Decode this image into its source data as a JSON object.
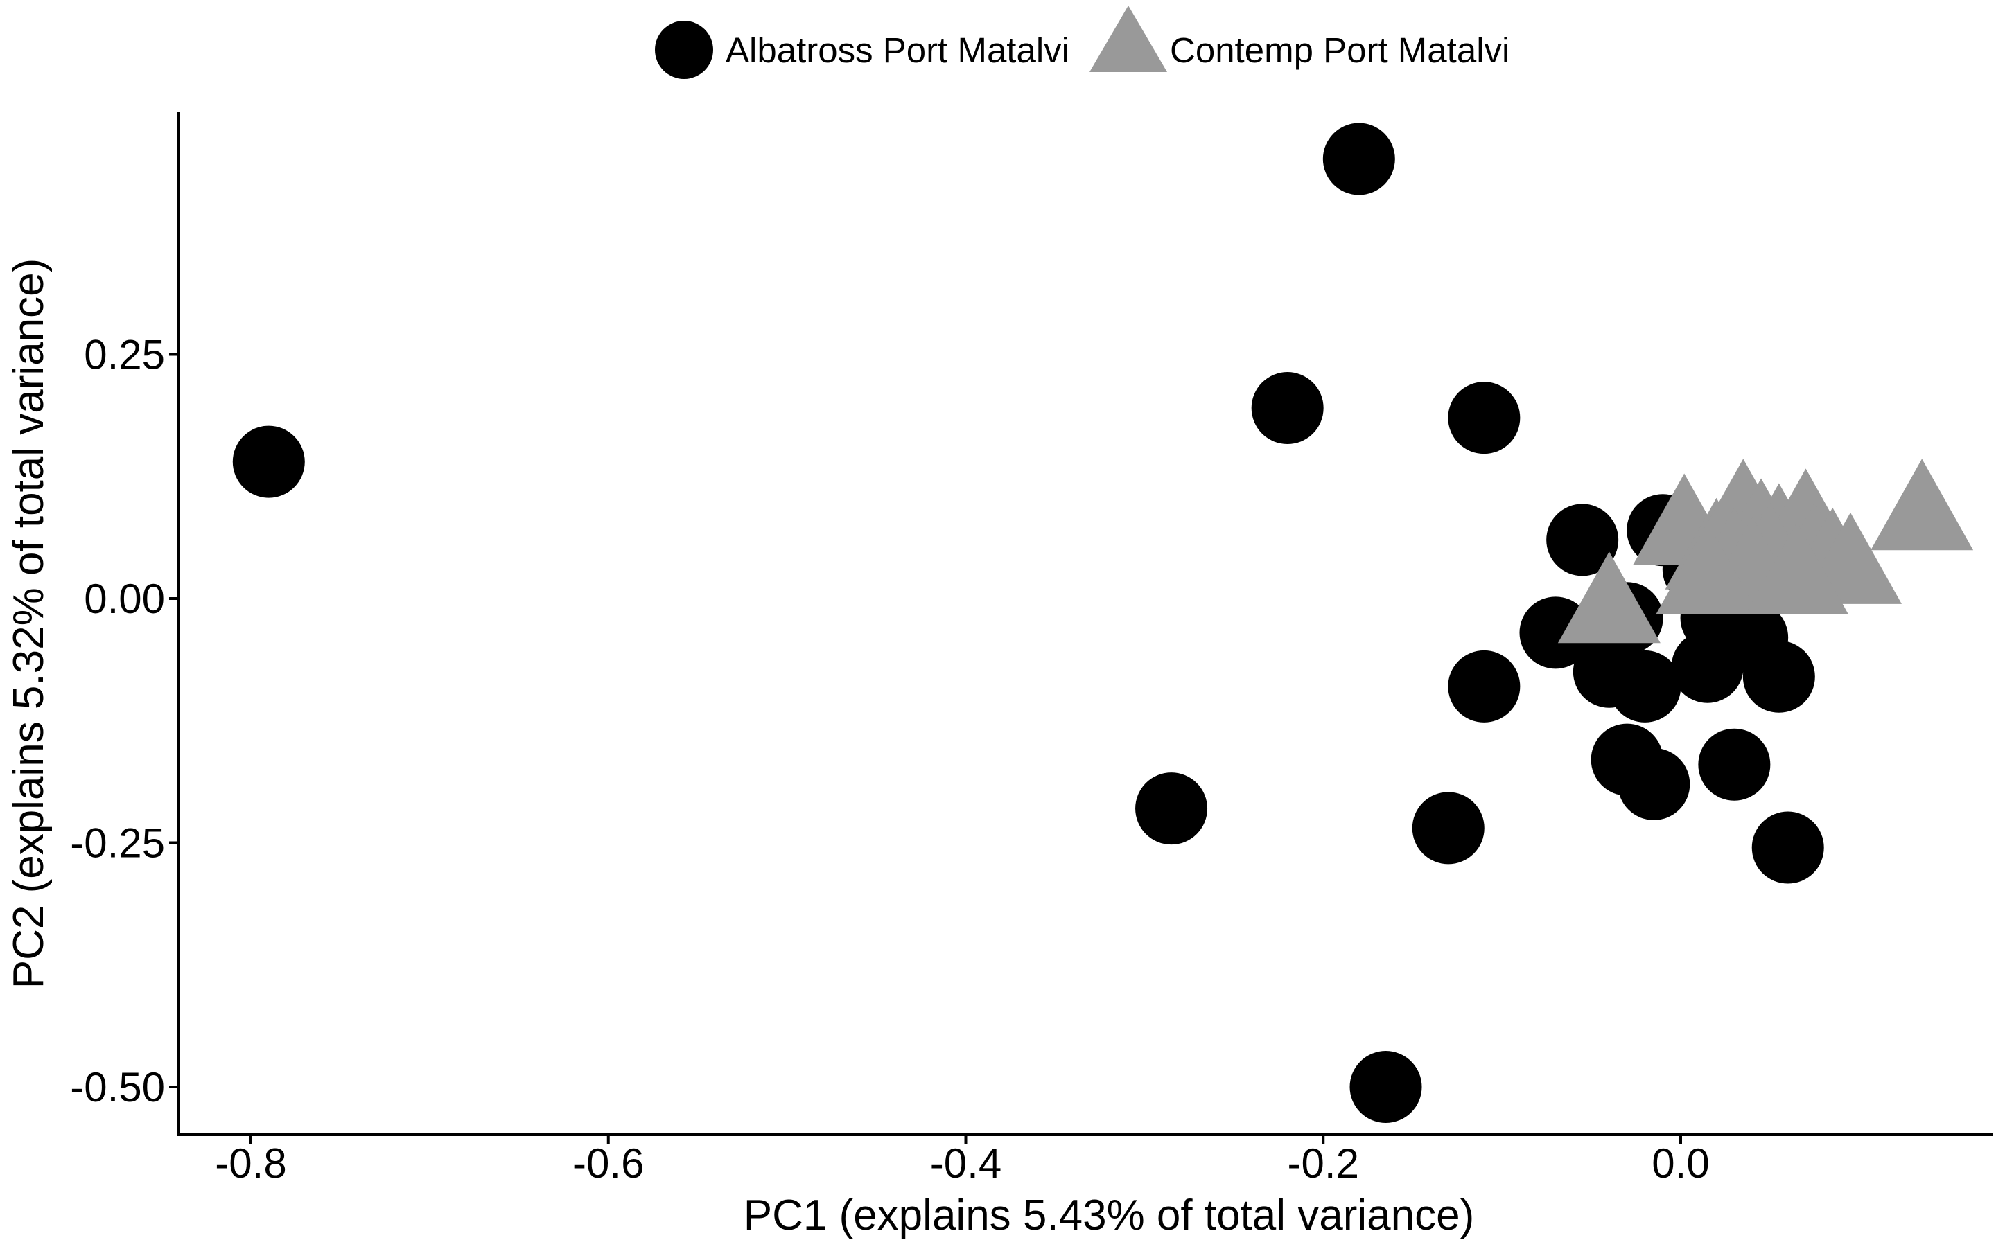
{
  "chart_data": {
    "type": "scatter",
    "title": "",
    "xlabel": "PC1 (explains 5.43% of total variance)",
    "ylabel": "PC2 (explains 5.32% of total variance)",
    "xlim": [
      -0.835,
      0.385
    ],
    "ylim": [
      -0.545,
      0.5
    ],
    "x_ticks": [
      -0.8,
      -0.6,
      -0.4,
      -0.2,
      0.0
    ],
    "x_tick_labels": [
      "-0.8",
      "-0.6",
      "-0.4",
      "-0.2",
      "0.0"
    ],
    "y_ticks": [
      -0.5,
      -0.25,
      0.0,
      0.25
    ],
    "y_tick_labels": [
      "-0.50",
      "-0.25",
      "0.00",
      "0.25"
    ],
    "grid": false,
    "legend_position": "top",
    "series": [
      {
        "name": "Albatross Port Matalvi",
        "marker": "circle",
        "color": "#000000",
        "points": [
          {
            "x": -0.79,
            "y": 0.14
          },
          {
            "x": -0.18,
            "y": 0.45
          },
          {
            "x": -0.22,
            "y": 0.195
          },
          {
            "x": -0.11,
            "y": 0.185
          },
          {
            "x": -0.055,
            "y": 0.06
          },
          {
            "x": -0.01,
            "y": 0.07
          },
          {
            "x": 0.01,
            "y": 0.03
          },
          {
            "x": -0.07,
            "y": -0.035
          },
          {
            "x": -0.03,
            "y": -0.02
          },
          {
            "x": 0.02,
            "y": -0.02
          },
          {
            "x": 0.04,
            "y": -0.04
          },
          {
            "x": -0.04,
            "y": -0.075
          },
          {
            "x": -0.02,
            "y": -0.09
          },
          {
            "x": 0.015,
            "y": -0.07
          },
          {
            "x": 0.055,
            "y": -0.08
          },
          {
            "x": -0.11,
            "y": -0.09
          },
          {
            "x": -0.03,
            "y": -0.165
          },
          {
            "x": -0.015,
            "y": -0.19
          },
          {
            "x": 0.03,
            "y": -0.17
          },
          {
            "x": -0.285,
            "y": -0.215
          },
          {
            "x": -0.13,
            "y": -0.235
          },
          {
            "x": 0.06,
            "y": -0.255
          },
          {
            "x": -0.165,
            "y": -0.5
          }
        ]
      },
      {
        "name": "Contemp Port Matalvi",
        "marker": "triangle",
        "color": "#999999",
        "points": [
          {
            "x": 0.002,
            "y": 0.07
          },
          {
            "x": 0.02,
            "y": 0.045
          },
          {
            "x": 0.035,
            "y": 0.085
          },
          {
            "x": 0.045,
            "y": 0.065
          },
          {
            "x": 0.055,
            "y": 0.06
          },
          {
            "x": 0.07,
            "y": 0.075
          },
          {
            "x": 0.03,
            "y": 0.035
          },
          {
            "x": 0.05,
            "y": 0.04
          },
          {
            "x": 0.075,
            "y": 0.04
          },
          {
            "x": 0.085,
            "y": 0.035
          },
          {
            "x": 0.095,
            "y": 0.03
          },
          {
            "x": 0.04,
            "y": 0.025
          },
          {
            "x": 0.015,
            "y": 0.02
          },
          {
            "x": 0.065,
            "y": 0.02
          },
          {
            "x": 0.135,
            "y": 0.085
          },
          {
            "x": -0.04,
            "y": -0.01
          }
        ]
      }
    ]
  }
}
